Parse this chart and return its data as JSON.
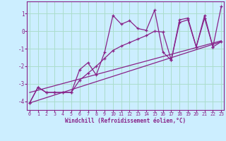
{
  "xlabel": "Windchill (Refroidissement éolien,°C)",
  "bg_color": "#cceeff",
  "grid_color": "#aaddcc",
  "line_color": "#882288",
  "x_ticks": [
    0,
    1,
    2,
    3,
    4,
    5,
    6,
    7,
    8,
    9,
    10,
    11,
    12,
    13,
    14,
    15,
    16,
    17,
    18,
    19,
    20,
    21,
    22,
    23
  ],
  "y_ticks": [
    -4,
    -3,
    -2,
    -1,
    0,
    1
  ],
  "ylim": [
    -4.5,
    1.7
  ],
  "xlim": [
    -0.3,
    23.3
  ],
  "series_zigzag_x": [
    0,
    1,
    2,
    3,
    4,
    5,
    6,
    7,
    8,
    9,
    10,
    11,
    12,
    13,
    14,
    15,
    16,
    17,
    18,
    19,
    20,
    21,
    22,
    23
  ],
  "series_zigzag_y": [
    -4.1,
    -3.2,
    -3.5,
    -3.5,
    -3.5,
    -3.5,
    -2.2,
    -1.8,
    -2.5,
    -1.2,
    0.9,
    0.4,
    0.6,
    0.15,
    0.05,
    1.2,
    -1.2,
    -1.65,
    0.65,
    0.75,
    -0.9,
    0.9,
    -0.9,
    1.4
  ],
  "series_smooth_x": [
    0,
    1,
    2,
    3,
    4,
    5,
    6,
    7,
    8,
    9,
    10,
    11,
    12,
    13,
    14,
    15,
    16,
    17,
    18,
    19,
    20,
    21,
    22,
    23
  ],
  "series_smooth_y": [
    -4.1,
    -3.2,
    -3.5,
    -3.5,
    -3.5,
    -3.5,
    -2.8,
    -2.4,
    -2.0,
    -1.55,
    -1.1,
    -0.85,
    -0.65,
    -0.45,
    -0.25,
    0.0,
    -0.05,
    -1.65,
    0.5,
    0.65,
    -0.9,
    0.75,
    -0.9,
    -0.6
  ],
  "line1_x": [
    0,
    23
  ],
  "line1_y": [
    -4.1,
    -0.6
  ],
  "line2_x": [
    0,
    23
  ],
  "line2_y": [
    -3.5,
    -0.55
  ]
}
